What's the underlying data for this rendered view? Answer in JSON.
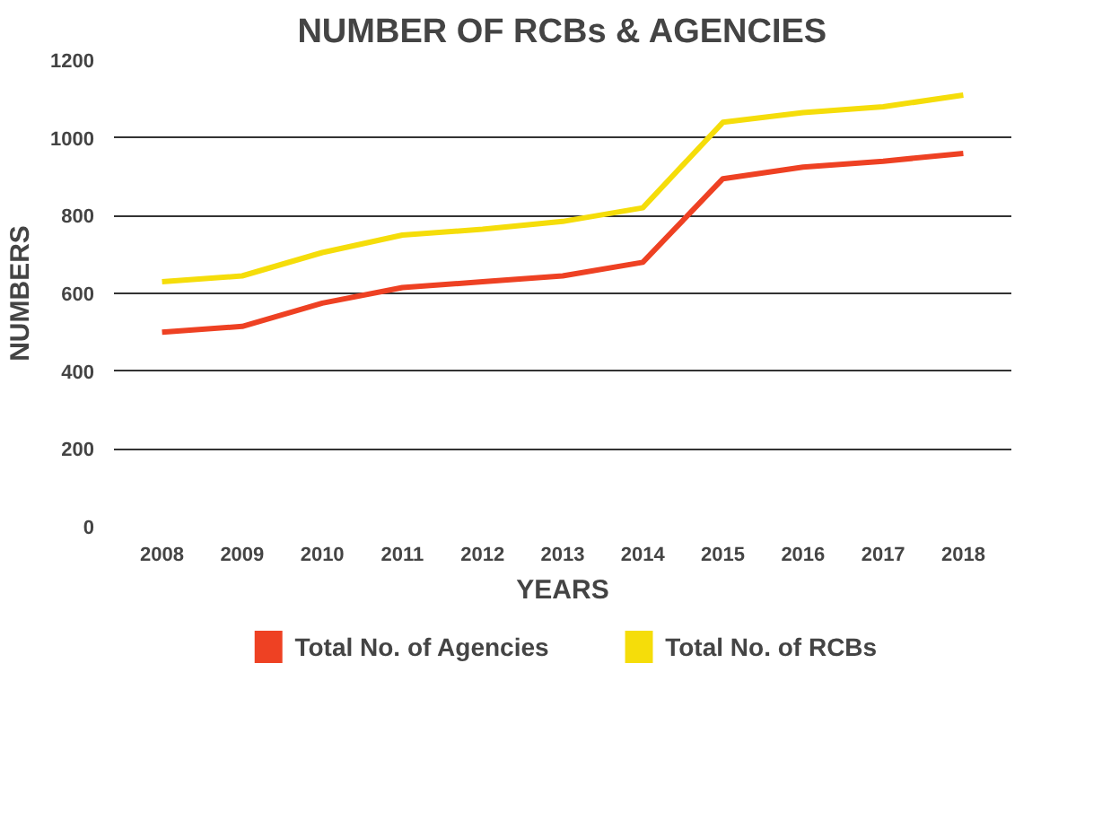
{
  "chart_data": {
    "type": "line",
    "title": "NUMBER OF RCBs & AGENCIES",
    "xlabel": "YEARS",
    "ylabel": "NUMBERS",
    "categories": [
      "2008",
      "2009",
      "2010",
      "2011",
      "2012",
      "2013",
      "2014",
      "2015",
      "2016",
      "2017",
      "2018"
    ],
    "series": [
      {
        "name": "Total No. of Agencies",
        "color": "#ee4123",
        "values": [
          500,
          515,
          575,
          615,
          630,
          645,
          680,
          895,
          925,
          940,
          960
        ]
      },
      {
        "name": "Total No. of RCBs",
        "color": "#f5dd0a",
        "values": [
          630,
          645,
          705,
          750,
          765,
          785,
          820,
          1040,
          1065,
          1080,
          1110
        ]
      }
    ],
    "ylim": [
      0,
      1200
    ],
    "yticks": [
      0,
      200,
      400,
      600,
      800,
      1000,
      1200
    ],
    "grid": "y",
    "legend": "bottom"
  }
}
